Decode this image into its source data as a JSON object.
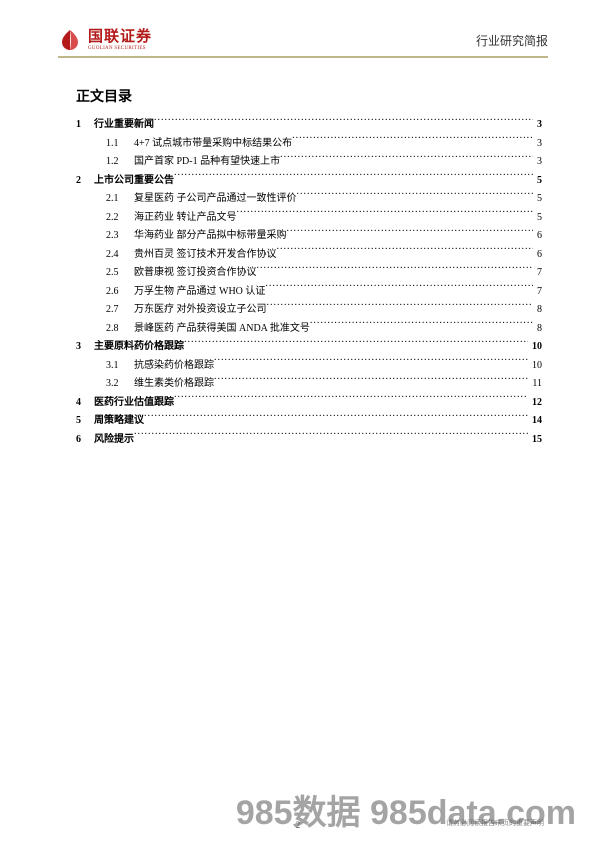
{
  "header": {
    "logo_cn": "国联证券",
    "logo_en": "GUOLIAN SECURITIES",
    "right_text": "行业研究简报",
    "divider_color": "#bfb68a",
    "logo_color": "#b51a1a"
  },
  "toc": {
    "title": "正文目录",
    "title_fontsize": 14,
    "entry_fontsize": 10,
    "entries": [
      {
        "level": 1,
        "num": "1",
        "label": "行业重要新闻",
        "page": "3"
      },
      {
        "level": 2,
        "num": "1.1",
        "label": "4+7 试点城市带量采购中标结果公布",
        "page": "3"
      },
      {
        "level": 2,
        "num": "1.2",
        "label": "国产首家 PD-1 品种有望快速上市",
        "page": "3"
      },
      {
        "level": 1,
        "num": "2",
        "label": "上市公司重要公告",
        "page": "5"
      },
      {
        "level": 2,
        "num": "2.1",
        "label": "复星医药  子公司产品通过一致性评价",
        "page": "5"
      },
      {
        "level": 2,
        "num": "2.2",
        "label": "海正药业  转让产品文号",
        "page": "5"
      },
      {
        "level": 2,
        "num": "2.3",
        "label": "华海药业  部分产品拟中标带量采购",
        "page": "6"
      },
      {
        "level": 2,
        "num": "2.4",
        "label": "贵州百灵  签订技术开发合作协议",
        "page": "6"
      },
      {
        "level": 2,
        "num": "2.5",
        "label": "欧普康视  签订投资合作协议",
        "page": "7"
      },
      {
        "level": 2,
        "num": "2.6",
        "label": "万孚生物  产品通过 WHO 认证",
        "page": "7"
      },
      {
        "level": 2,
        "num": "2.7",
        "label": "万东医疗  对外投资设立子公司",
        "page": "8"
      },
      {
        "level": 2,
        "num": "2.8",
        "label": "景峰医药  产品获得美国 ANDA 批准文号",
        "page": "8"
      },
      {
        "level": 1,
        "num": "3",
        "label": "主要原料药价格跟踪",
        "page": "10"
      },
      {
        "level": 2,
        "num": "3.1",
        "label": "抗感染药价格跟踪",
        "page": "10"
      },
      {
        "level": 2,
        "num": "3.2",
        "label": "维生素类价格跟踪",
        "page": "11"
      },
      {
        "level": 1,
        "num": "4",
        "label": "医药行业估值跟踪",
        "page": "12"
      },
      {
        "level": 1,
        "num": "5",
        "label": "周策略建议",
        "page": "14"
      },
      {
        "level": 1,
        "num": "6",
        "label": "风险提示",
        "page": "15"
      }
    ]
  },
  "footer": {
    "page_num": "2",
    "disclaimer": "请务必阅读报告末页的重要声明",
    "watermark": "985数据 985data.com"
  },
  "colors": {
    "background": "#ffffff",
    "text": "#000000",
    "brand": "#b51a1a",
    "divider": "#bfb68a"
  }
}
